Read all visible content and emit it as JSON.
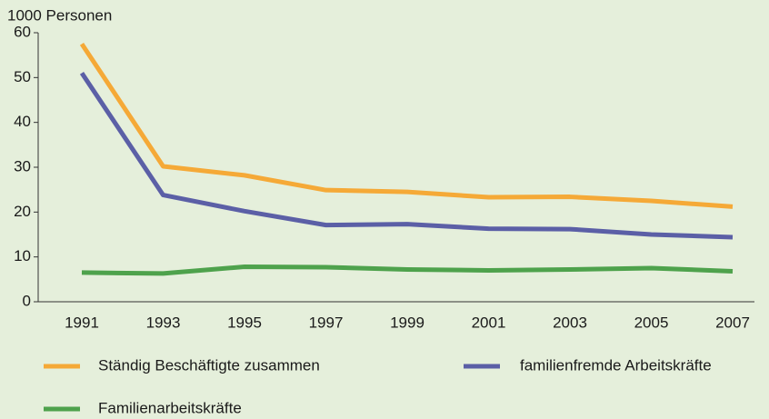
{
  "chart_data": {
    "type": "line",
    "y_label": "1000 Personen",
    "categories": [
      "1991",
      "1993",
      "1995",
      "1997",
      "1999",
      "2001",
      "2003",
      "2005",
      "2007"
    ],
    "series": [
      {
        "name": "Ständig Beschäftigte zusammen",
        "color": "#f5a937",
        "values": [
          57.5,
          30.2,
          28.2,
          24.9,
          24.5,
          23.3,
          23.4,
          22.5,
          21.2
        ]
      },
      {
        "name": "familienfremde Arbeitskräfte",
        "color": "#5b5fa6",
        "values": [
          51,
          23.8,
          20.2,
          17.1,
          17.3,
          16.3,
          16.2,
          15.0,
          14.4
        ]
      },
      {
        "name": "Familienarbeitskräfte",
        "color": "#4ea24c",
        "values": [
          6.5,
          6.3,
          7.8,
          7.7,
          7.2,
          7.0,
          7.2,
          7.5,
          6.8
        ]
      }
    ],
    "ylim": [
      0,
      60
    ],
    "yticks": [
      0,
      10,
      20,
      30,
      40,
      50,
      60
    ],
    "grid": false
  }
}
